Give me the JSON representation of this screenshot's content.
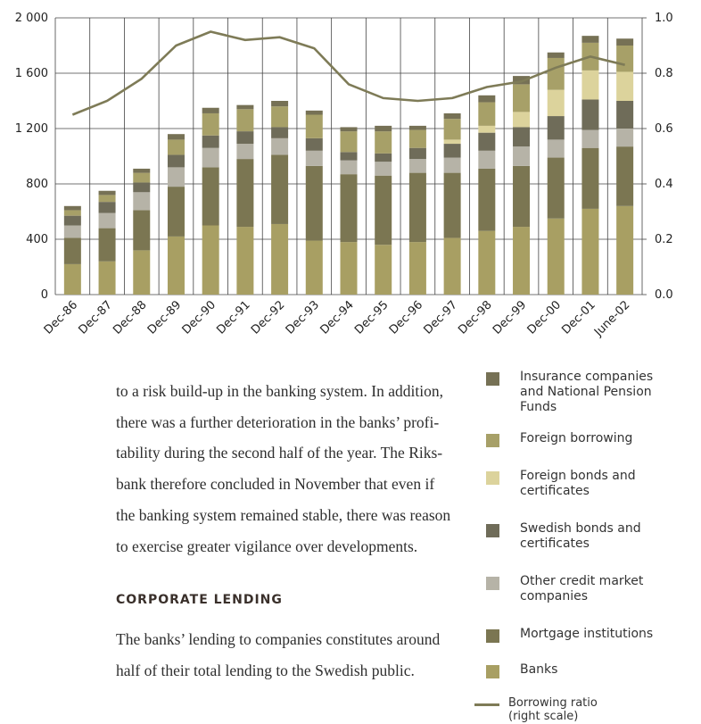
{
  "chart_data": {
    "type": "bar",
    "stacked": true,
    "grid": true,
    "categories": [
      "Dec-86",
      "Dec-87",
      "Dec-88",
      "Dec-89",
      "Dec-90",
      "Dec-91",
      "Dec-92",
      "Dec-93",
      "Dec-94",
      "Dec-95",
      "Dec-96",
      "Dec-97",
      "Dec-98",
      "Dec-99",
      "Dec-00",
      "Dec-01",
      "June-02"
    ],
    "ylim": [
      0,
      2000
    ],
    "yticks": [
      0,
      400,
      800,
      {
        "value": 1200,
        "label": "1 200"
      },
      {
        "value": 1600,
        "label": "1 600"
      },
      {
        "value": 2000,
        "label": "2 000"
      }
    ],
    "y2lim": [
      0,
      1
    ],
    "y2ticks": [
      {
        "value": 0,
        "label": "0.0"
      },
      0.2,
      0.4,
      0.6,
      0.8,
      {
        "value": 1,
        "label": "1.0"
      }
    ],
    "series": [
      {
        "name": "Banks",
        "color": "#a89f63",
        "values": [
          220,
          240,
          320,
          420,
          500,
          490,
          510,
          390,
          380,
          360,
          380,
          410,
          460,
          490,
          550,
          620,
          640
        ]
      },
      {
        "name": "Mortgage institutions",
        "color": "#7b7652",
        "values": [
          190,
          240,
          290,
          360,
          420,
          490,
          500,
          540,
          490,
          500,
          500,
          470,
          450,
          440,
          440,
          440,
          430
        ]
      },
      {
        "name": "Other credit market companies",
        "color": "#b6b3a7",
        "values": [
          90,
          110,
          130,
          140,
          140,
          110,
          120,
          110,
          100,
          100,
          100,
          110,
          130,
          140,
          130,
          130,
          130
        ]
      },
      {
        "name": "Swedish bonds and certificates",
        "color": "#6f6c59",
        "values": [
          70,
          80,
          70,
          90,
          90,
          90,
          80,
          90,
          60,
          60,
          80,
          100,
          130,
          140,
          170,
          220,
          200
        ]
      },
      {
        "name": "Foreign bonds and certificates",
        "color": "#dcd39c",
        "values": [
          0,
          0,
          0,
          0,
          0,
          0,
          0,
          0,
          0,
          0,
          0,
          30,
          50,
          110,
          190,
          210,
          210
        ]
      },
      {
        "name": "Foreign borrowing",
        "color": "#a7a068",
        "values": [
          40,
          50,
          70,
          110,
          160,
          160,
          150,
          170,
          150,
          160,
          130,
          150,
          170,
          200,
          230,
          200,
          190
        ]
      },
      {
        "name": "Insurance companies and National Pension Funds",
        "color": "#767155",
        "values": [
          30,
          30,
          30,
          40,
          40,
          30,
          40,
          30,
          30,
          40,
          30,
          40,
          50,
          60,
          40,
          50,
          50
        ]
      },
      {
        "name": "Borrowing ratio (right scale)",
        "type": "line",
        "axis": "y2",
        "color": "#7e7b57",
        "values": [
          0.65,
          0.7,
          0.78,
          0.9,
          0.95,
          0.92,
          0.93,
          0.89,
          0.76,
          0.71,
          0.7,
          0.71,
          0.75,
          0.77,
          0.82,
          0.86,
          0.83
        ]
      }
    ]
  },
  "text": {
    "paragraph_1": [
      "to a risk build-up in the banking system. In addition,",
      "there was a further deterioration in the banks’ profi-",
      "tability during the second half of the year. The Riks-",
      "bank therefore concluded in November that even if",
      "the banking system remained stable, there was reason",
      "to exercise greater vigilance over developments."
    ],
    "heading": "CORPORATE LENDING",
    "paragraph_2": [
      "The banks’ lending to companies constitutes around",
      "half of their total lending to the Swedish public."
    ]
  }
}
